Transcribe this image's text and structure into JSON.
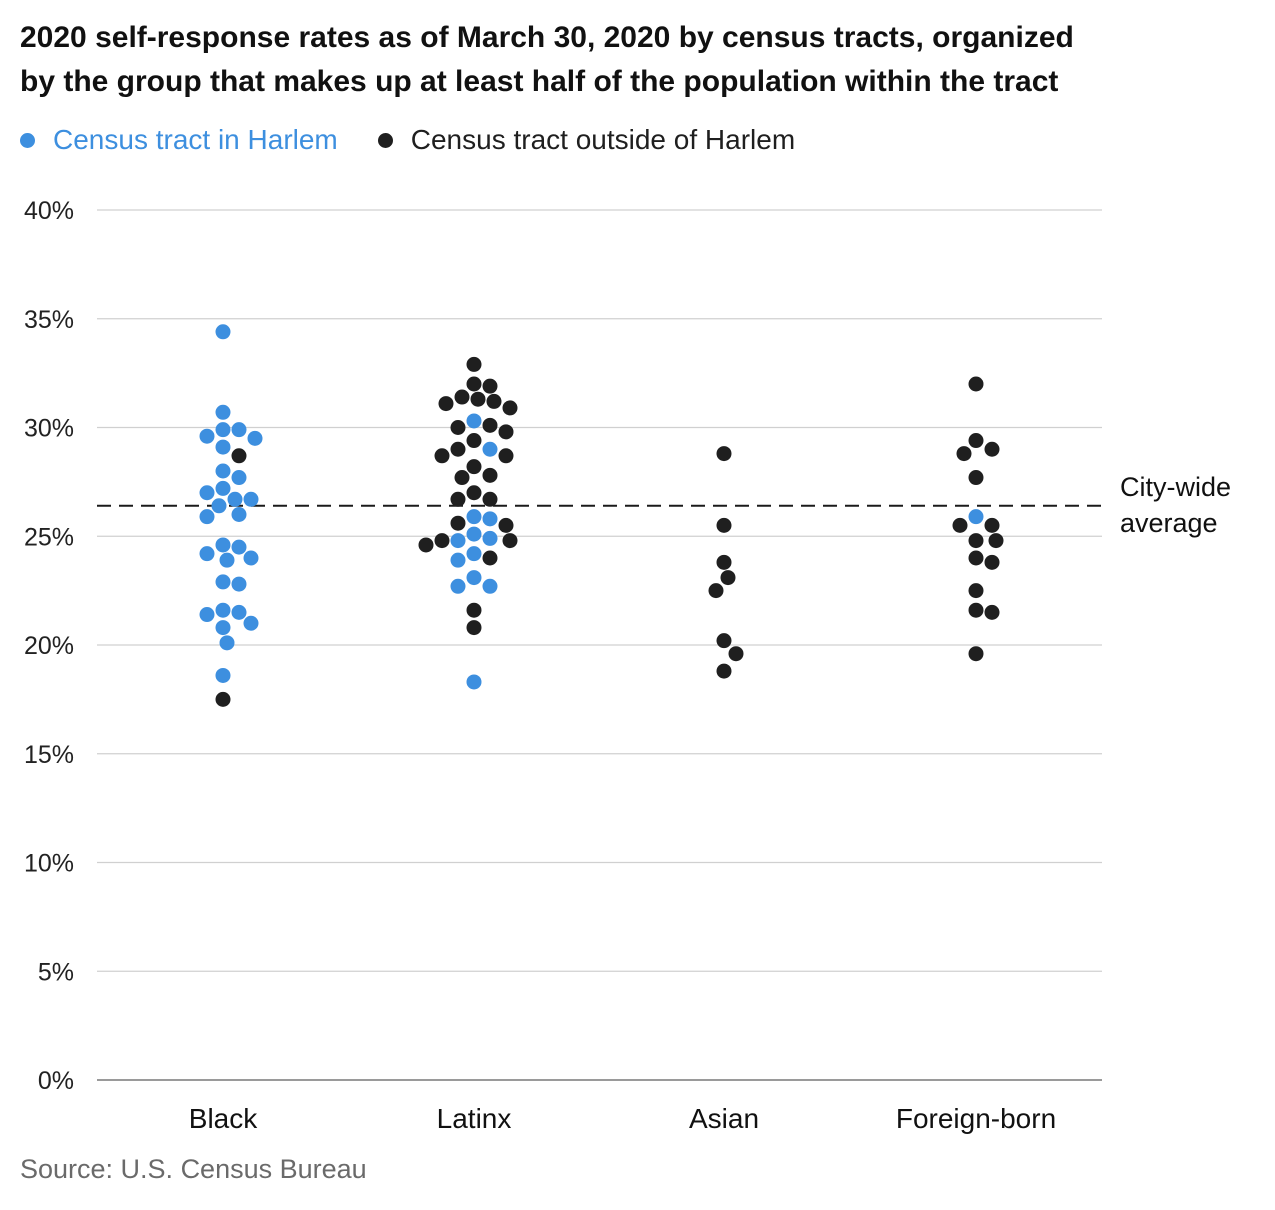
{
  "title_lines": [
    "2020 self-response rates as of March 30, 2020 by census tracts, organized",
    "by the group that makes up at least half of the population within the tract"
  ],
  "source": "Source: U.S. Census Bureau",
  "colors": {
    "harlem": "#3d8fdf",
    "outside": "#1f1f1f"
  },
  "chart_data": {
    "type": "scatter",
    "title": "2020 self-response rates as of March 30, 2020 by census tracts, organized by the group that makes up at least half of the population within the tract",
    "categories": [
      "Black",
      "Latinx",
      "Asian",
      "Foreign-born"
    ],
    "ylim": [
      0,
      40
    ],
    "yticks": [
      0,
      5,
      10,
      15,
      20,
      25,
      30,
      35,
      40
    ],
    "ytick_format": "%",
    "grid": true,
    "legend_placement": "top-left",
    "reference_line": {
      "value": 26.4,
      "label_lines": [
        "City-wide",
        "average"
      ]
    },
    "series": [
      {
        "name": "Census tract in Harlem",
        "points": [
          {
            "category": "Black",
            "y": 34.4
          },
          {
            "category": "Black",
            "y": 30.7
          },
          {
            "category": "Black",
            "y": 29.9
          },
          {
            "category": "Black",
            "y": 29.9
          },
          {
            "category": "Black",
            "y": 29.5
          },
          {
            "category": "Black",
            "y": 29.6
          },
          {
            "category": "Black",
            "y": 29.1
          },
          {
            "category": "Black",
            "y": 28.0
          },
          {
            "category": "Black",
            "y": 27.7
          },
          {
            "category": "Black",
            "y": 27.2
          },
          {
            "category": "Black",
            "y": 26.7
          },
          {
            "category": "Black",
            "y": 26.7
          },
          {
            "category": "Black",
            "y": 27.0
          },
          {
            "category": "Black",
            "y": 26.4
          },
          {
            "category": "Black",
            "y": 26.0
          },
          {
            "category": "Black",
            "y": 25.9
          },
          {
            "category": "Black",
            "y": 24.5
          },
          {
            "category": "Black",
            "y": 24.6
          },
          {
            "category": "Black",
            "y": 24.2
          },
          {
            "category": "Black",
            "y": 24.0
          },
          {
            "category": "Black",
            "y": 23.9
          },
          {
            "category": "Black",
            "y": 22.9
          },
          {
            "category": "Black",
            "y": 22.8
          },
          {
            "category": "Black",
            "y": 21.6
          },
          {
            "category": "Black",
            "y": 21.5
          },
          {
            "category": "Black",
            "y": 21.4
          },
          {
            "category": "Black",
            "y": 21.0
          },
          {
            "category": "Black",
            "y": 20.8
          },
          {
            "category": "Black",
            "y": 20.1
          },
          {
            "category": "Black",
            "y": 18.6
          },
          {
            "category": "Latinx",
            "y": 30.3
          },
          {
            "category": "Latinx",
            "y": 29.0
          },
          {
            "category": "Latinx",
            "y": 25.9
          },
          {
            "category": "Latinx",
            "y": 25.8
          },
          {
            "category": "Latinx",
            "y": 25.1
          },
          {
            "category": "Latinx",
            "y": 24.9
          },
          {
            "category": "Latinx",
            "y": 24.8
          },
          {
            "category": "Latinx",
            "y": 24.2
          },
          {
            "category": "Latinx",
            "y": 23.9
          },
          {
            "category": "Latinx",
            "y": 23.1
          },
          {
            "category": "Latinx",
            "y": 22.7
          },
          {
            "category": "Latinx",
            "y": 22.7
          },
          {
            "category": "Latinx",
            "y": 18.3
          },
          {
            "category": "Foreign-born",
            "y": 25.9
          }
        ]
      },
      {
        "name": "Census tract outside of Harlem",
        "points": [
          {
            "category": "Black",
            "y": 28.7
          },
          {
            "category": "Black",
            "y": 17.5
          },
          {
            "category": "Latinx",
            "y": 32.9
          },
          {
            "category": "Latinx",
            "y": 32.0
          },
          {
            "category": "Latinx",
            "y": 31.9
          },
          {
            "category": "Latinx",
            "y": 31.4
          },
          {
            "category": "Latinx",
            "y": 31.3
          },
          {
            "category": "Latinx",
            "y": 31.2
          },
          {
            "category": "Latinx",
            "y": 31.1
          },
          {
            "category": "Latinx",
            "y": 30.9
          },
          {
            "category": "Latinx",
            "y": 30.1
          },
          {
            "category": "Latinx",
            "y": 30.0
          },
          {
            "category": "Latinx",
            "y": 29.8
          },
          {
            "category": "Latinx",
            "y": 29.4
          },
          {
            "category": "Latinx",
            "y": 29.0
          },
          {
            "category": "Latinx",
            "y": 28.7
          },
          {
            "category": "Latinx",
            "y": 28.7
          },
          {
            "category": "Latinx",
            "y": 28.2
          },
          {
            "category": "Latinx",
            "y": 27.8
          },
          {
            "category": "Latinx",
            "y": 27.7
          },
          {
            "category": "Latinx",
            "y": 27.0
          },
          {
            "category": "Latinx",
            "y": 26.7
          },
          {
            "category": "Latinx",
            "y": 26.7
          },
          {
            "category": "Latinx",
            "y": 25.6
          },
          {
            "category": "Latinx",
            "y": 25.5
          },
          {
            "category": "Latinx",
            "y": 24.8
          },
          {
            "category": "Latinx",
            "y": 24.8
          },
          {
            "category": "Latinx",
            "y": 24.6
          },
          {
            "category": "Latinx",
            "y": 24.0
          },
          {
            "category": "Latinx",
            "y": 21.6
          },
          {
            "category": "Latinx",
            "y": 20.8
          },
          {
            "category": "Asian",
            "y": 28.8
          },
          {
            "category": "Asian",
            "y": 25.5
          },
          {
            "category": "Asian",
            "y": 23.8
          },
          {
            "category": "Asian",
            "y": 23.1
          },
          {
            "category": "Asian",
            "y": 22.5
          },
          {
            "category": "Asian",
            "y": 20.2
          },
          {
            "category": "Asian",
            "y": 19.6
          },
          {
            "category": "Asian",
            "y": 18.8
          },
          {
            "category": "Foreign-born",
            "y": 32.0
          },
          {
            "category": "Foreign-born",
            "y": 29.4
          },
          {
            "category": "Foreign-born",
            "y": 29.0
          },
          {
            "category": "Foreign-born",
            "y": 28.8
          },
          {
            "category": "Foreign-born",
            "y": 27.7
          },
          {
            "category": "Foreign-born",
            "y": 25.5
          },
          {
            "category": "Foreign-born",
            "y": 25.5
          },
          {
            "category": "Foreign-born",
            "y": 24.8
          },
          {
            "category": "Foreign-born",
            "y": 24.8
          },
          {
            "category": "Foreign-born",
            "y": 24.0
          },
          {
            "category": "Foreign-born",
            "y": 23.8
          },
          {
            "category": "Foreign-born",
            "y": 22.5
          },
          {
            "category": "Foreign-born",
            "y": 21.6
          },
          {
            "category": "Foreign-born",
            "y": 21.5
          },
          {
            "category": "Foreign-born",
            "y": 19.6
          }
        ]
      }
    ]
  }
}
